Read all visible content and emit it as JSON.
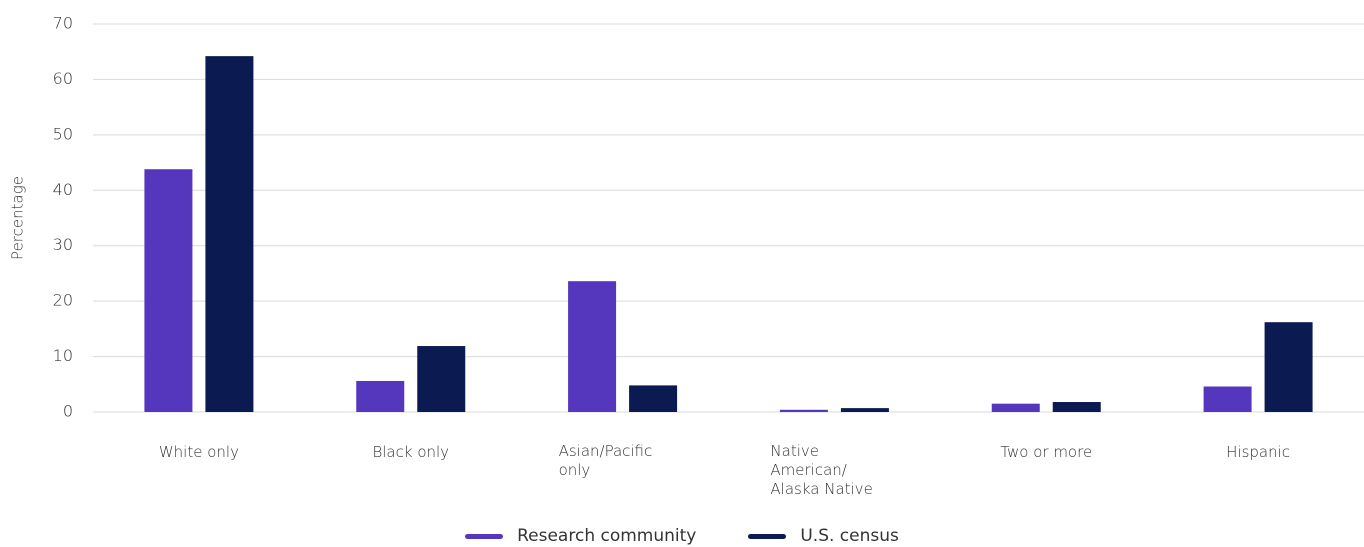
{
  "chart_data": {
    "type": "bar",
    "y_label": "Percentage",
    "categories": [
      "White only",
      "Black only",
      "Asian/Pacific only",
      "Native American/ Alaska Native",
      "Two or more",
      "Hispanic"
    ],
    "series": [
      {
        "name": "Research community",
        "color": "#5537bd",
        "values": [
          43.8,
          5.6,
          23.6,
          0.4,
          1.5,
          4.6
        ]
      },
      {
        "name": "U.S. census",
        "color": "#0b1a50",
        "values": [
          64.2,
          11.9,
          4.8,
          0.7,
          1.8,
          16.2
        ]
      }
    ],
    "ylim": [
      0,
      70
    ],
    "yticks": [
      0,
      10,
      20,
      30,
      40,
      50,
      60,
      70
    ],
    "grid": true,
    "legend": "bottom"
  }
}
